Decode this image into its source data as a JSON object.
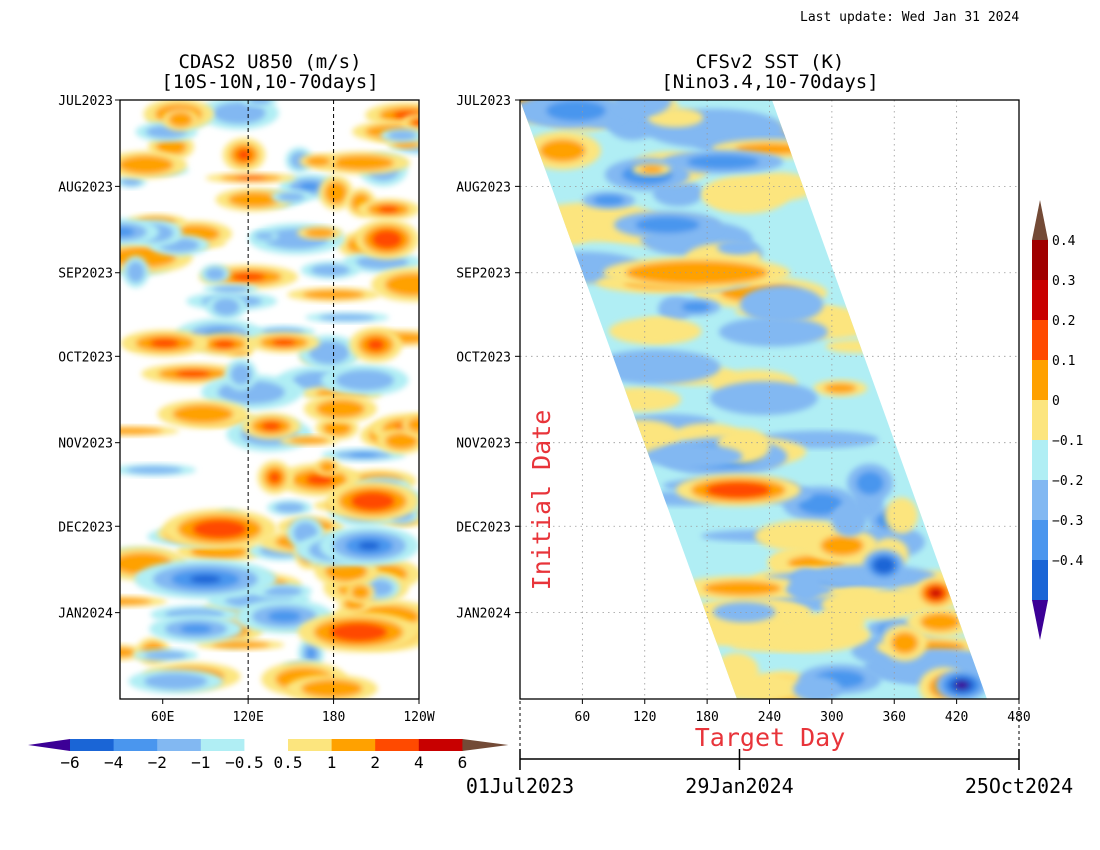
{
  "header": {
    "last_update": "Last update: Wed Jan 31 2024"
  },
  "colors": {
    "scale": [
      "#3c0096",
      "#1a65d6",
      "#4a96ee",
      "#82b8f2",
      "#b0eef4",
      "#ffffff",
      "#fce57e",
      "#ffa100",
      "#ff4a00",
      "#c80000",
      "#a00000",
      "#734a36"
    ],
    "annotation_red": "#e8343a"
  },
  "chart_data": [
    {
      "type": "heatmap",
      "name": "hovmoller-u850",
      "title_line1": "CDAS2 U850 (m/s)",
      "title_line2": "[10S-10N,10-70days]",
      "x_field": "longitude",
      "x_ticks": [
        "60E",
        "120E",
        "180",
        "120W"
      ],
      "x_tick_values": [
        60,
        120,
        180,
        240
      ],
      "xlim": [
        30,
        240
      ],
      "dashed_reference_lines_x": [
        120,
        180
      ],
      "y_field": "time",
      "y_ticks": [
        "JUL2023",
        "AUG2023",
        "SEP2023",
        "OCT2023",
        "NOV2023",
        "DEC2023",
        "JAN2024"
      ],
      "y_tick_dates": [
        "2023-07-01",
        "2023-08-01",
        "2023-09-01",
        "2023-10-01",
        "2023-11-01",
        "2023-12-01",
        "2024-01-01"
      ],
      "ylim": [
        "2023-07-01",
        "2024-01-31"
      ],
      "colorbar": {
        "orientation": "horizontal",
        "labels": [
          "−6",
          "−4",
          "−2",
          "−1",
          "−0.5",
          "0.5",
          "1",
          "2",
          "4",
          "6"
        ],
        "levels": [
          -6,
          -4,
          -2,
          -1,
          -0.5,
          0.5,
          1,
          2,
          4,
          6
        ]
      },
      "features": [
        {
          "lon": [
            195,
            240
          ],
          "time": "2023-08-20",
          "value": 4
        },
        {
          "lon": [
            60,
            140
          ],
          "time": "2023-12-02",
          "value": 4
        },
        {
          "lon": [
            175,
            240
          ],
          "time": "2023-11-22",
          "value": 4
        },
        {
          "lon": [
            155,
            240
          ],
          "time": "2024-01-08",
          "value": 4
        },
        {
          "lon": [
            170,
            240
          ],
          "time": "2023-12-08",
          "value": -4
        },
        {
          "lon": [
            40,
            140
          ],
          "time": "2023-12-20",
          "value": -2
        }
      ]
    },
    {
      "type": "heatmap",
      "name": "hovmoller-sst",
      "title_line1": "CFSv2 SST (K)",
      "title_line2": "[Nino3.4,10-70days]",
      "xlabel": "Target Day",
      "ylabel": "Initial Date",
      "x_ticks": [
        "60",
        "120",
        "180",
        "240",
        "300",
        "360",
        "420",
        "480"
      ],
      "x_tick_values": [
        60,
        120,
        180,
        240,
        300,
        360,
        420,
        480
      ],
      "xlim": [
        0,
        480
      ],
      "date_axis": {
        "labels": [
          "01Jul2023",
          "29Jan2024",
          "25Oct2024"
        ],
        "days": [
          0,
          212,
          482
        ]
      },
      "y_ticks": [
        "JUL2023",
        "AUG2023",
        "SEP2023",
        "OCT2023",
        "NOV2023",
        "DEC2023",
        "JAN2024"
      ],
      "y_tick_dates": [
        "2023-07-01",
        "2023-08-01",
        "2023-09-01",
        "2023-10-01",
        "2023-11-01",
        "2023-12-01",
        "2024-01-01"
      ],
      "ylim": [
        "2023-07-01",
        "2024-01-31"
      ],
      "grid": true,
      "colorbar": {
        "orientation": "vertical",
        "labels": [
          "0.4",
          "0.3",
          "0.2",
          "0.1",
          "0",
          "−0.1",
          "−0.2",
          "−0.3",
          "−0.4"
        ],
        "levels": [
          0.4,
          0.3,
          0.2,
          0.1,
          0,
          -0.1,
          -0.2,
          -0.3,
          -0.4
        ]
      },
      "features": [
        {
          "initial_date": "2023-11-18",
          "target_day": [
            150,
            270
          ],
          "value": 0.3
        },
        {
          "initial_date": "2023-12-25",
          "target_day": [
            380,
            420
          ],
          "value": 0.4
        },
        {
          "initial_date": "2024-01-27",
          "target_day": [
            400,
            450
          ],
          "value": -0.4
        },
        {
          "initial_date": "2023-12-15",
          "target_day": [
            330,
            370
          ],
          "value": -0.3
        },
        {
          "initial_date": "2023-09-01",
          "target_day": [
            80,
            260
          ],
          "value": 0.2
        }
      ]
    }
  ]
}
